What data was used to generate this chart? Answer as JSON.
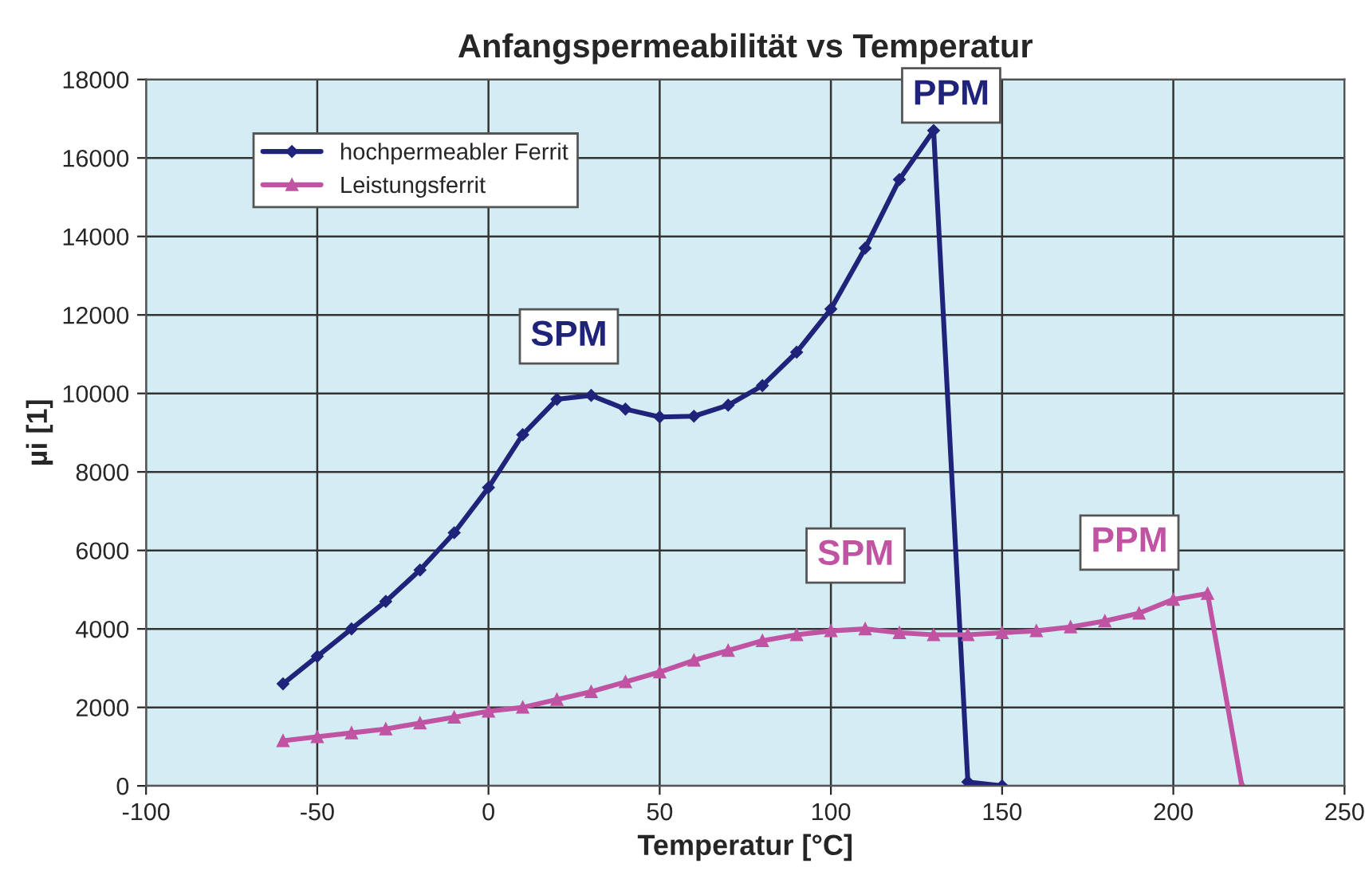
{
  "chart_data": {
    "type": "line",
    "title": "Anfangspermeabilität vs Temperatur",
    "xlabel": "Temperatur [°C]",
    "ylabel": "µi [1]",
    "xlim": [
      -100,
      250
    ],
    "xticks": [
      -100,
      -50,
      0,
      50,
      100,
      150,
      200,
      250
    ],
    "ylim": [
      0,
      18000
    ],
    "yticks": [
      0,
      2000,
      4000,
      6000,
      8000,
      10000,
      12000,
      14000,
      16000,
      18000
    ],
    "grid": true,
    "legend": "top left",
    "line_style": "solid",
    "series": [
      {
        "name": "hochpermeabler Ferrit",
        "color": "#1f237a",
        "marker": "diamond",
        "x": [
          -60,
          -50,
          -40,
          -30,
          -20,
          -10,
          0,
          10,
          20,
          30,
          40,
          50,
          60,
          70,
          80,
          90,
          100,
          110,
          120,
          130,
          140,
          150
        ],
        "values": [
          2600,
          3300,
          4000,
          4700,
          5500,
          6450,
          7600,
          8950,
          9850,
          9950,
          9600,
          9400,
          9420,
          9700,
          10200,
          11050,
          12150,
          13700,
          15450,
          16700,
          100,
          0
        ]
      },
      {
        "name": "Leistungsferrit",
        "color": "#c153a3",
        "marker": "triangle",
        "x": [
          -60,
          -50,
          -40,
          -30,
          -20,
          -10,
          0,
          10,
          20,
          30,
          40,
          50,
          60,
          70,
          80,
          90,
          100,
          110,
          120,
          130,
          140,
          150,
          160,
          170,
          180,
          190,
          200,
          210,
          220
        ],
        "values": [
          1150,
          1250,
          1350,
          1450,
          1600,
          1750,
          1900,
          2000,
          2200,
          2400,
          2650,
          2900,
          3200,
          3450,
          3700,
          3850,
          3950,
          4000,
          3900,
          3850,
          3850,
          3900,
          3950,
          4050,
          4200,
          4400,
          4750,
          4900,
          0
        ]
      }
    ],
    "annotations": [
      {
        "text": "SPM",
        "x": 30,
        "y": 9950
      },
      {
        "text": "PPM",
        "x": 130,
        "y": 16700
      },
      {
        "text": "SPM",
        "x": 110,
        "y": 4000
      },
      {
        "text": "PPM",
        "x": 210,
        "y": 4900
      }
    ]
  }
}
